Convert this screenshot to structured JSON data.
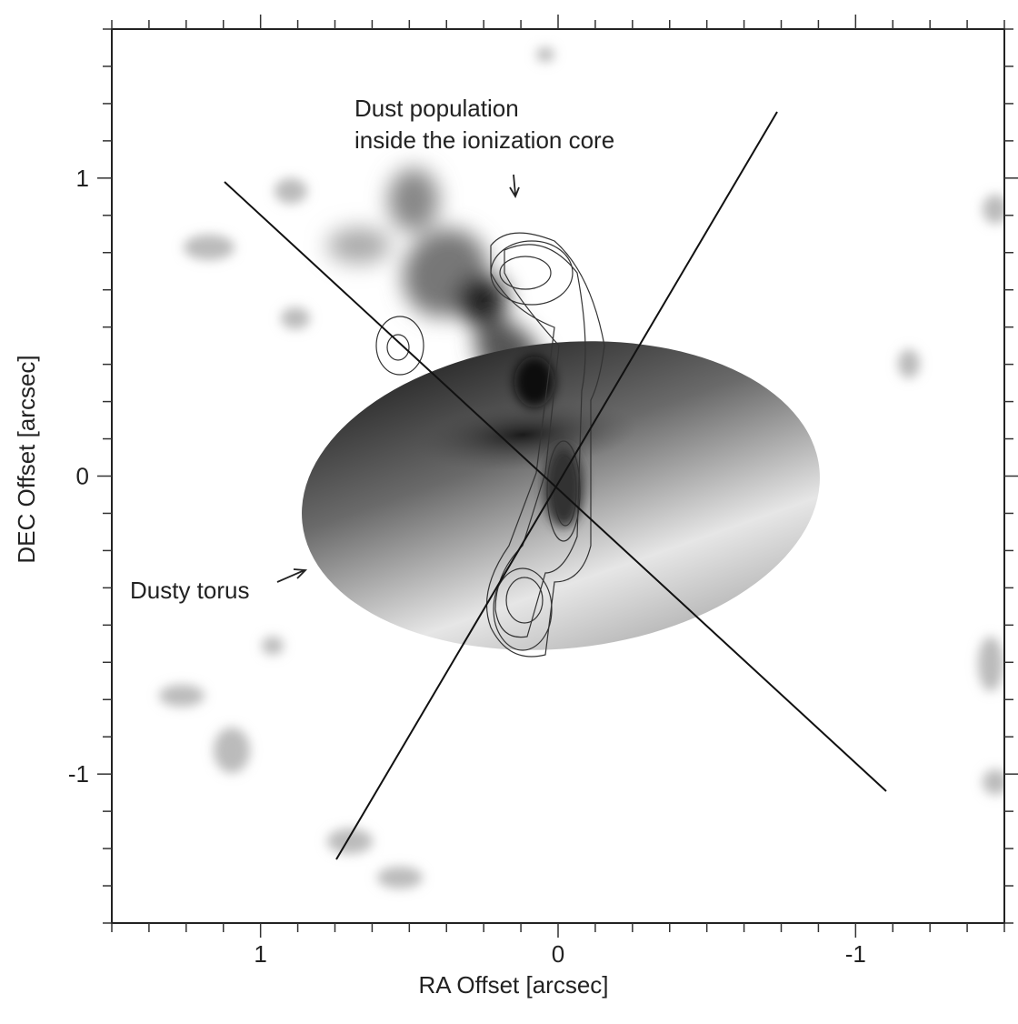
{
  "chart_data": {
    "type": "image",
    "x_label": "RA Offset  [arcsec]",
    "y_label": "DEC Offset [arcsec]",
    "annotations": [
      "Dust population",
      "inside the ionization core",
      "Dusty torus"
    ],
    "xlim": [
      1.5,
      -1.5
    ],
    "ylim": [
      -1.5,
      1.5
    ],
    "xticks": [
      1,
      0,
      -1
    ],
    "yticks": [
      1,
      0,
      -1
    ],
    "xminorticks": [
      1.5,
      1.375,
      1.25,
      1.125,
      0.875,
      0.75,
      0.625,
      0.5,
      0.375,
      0.25,
      0.125,
      -0.125,
      -0.25,
      -0.375,
      -0.5,
      -0.625,
      -0.75,
      -0.875,
      -1.125,
      -1.25,
      -1.375,
      -1.5
    ],
    "yminorticks": [
      1.5,
      1.375,
      1.25,
      1.125,
      0.875,
      0.75,
      0.625,
      0.5,
      0.375,
      0.25,
      0.125,
      -0.125,
      -0.25,
      -0.375,
      -0.5,
      -0.625,
      -0.75,
      -0.875,
      -1.125,
      -1.25,
      -1.375,
      -1.5
    ]
  }
}
